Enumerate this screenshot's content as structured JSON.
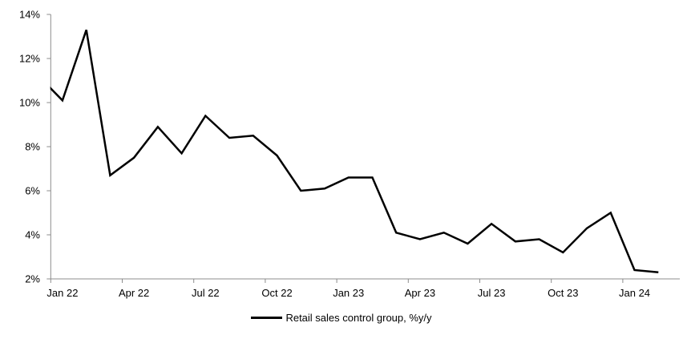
{
  "chart_data": {
    "type": "line",
    "title": "",
    "x": [
      "Dec 21",
      "Jan 22",
      "Feb 22",
      "Mar 22",
      "Apr 22",
      "May 22",
      "Jun 22",
      "Jul 22",
      "Aug 22",
      "Sep 22",
      "Oct 22",
      "Nov 22",
      "Dec 22",
      "Jan 23",
      "Feb 23",
      "Mar 23",
      "Apr 23",
      "May 23",
      "Jun 23",
      "Jul 23",
      "Aug 23",
      "Sep 23",
      "Oct 23",
      "Nov 23",
      "Dec 23",
      "Jan 24",
      "Feb 24"
    ],
    "series": [
      {
        "name": "Retail sales control group, %y/y",
        "color": "#000000",
        "values": [
          11.2,
          10.1,
          13.3,
          6.7,
          7.5,
          8.9,
          7.7,
          9.4,
          8.4,
          8.5,
          7.6,
          6.0,
          6.1,
          6.6,
          6.6,
          4.1,
          3.8,
          4.1,
          3.6,
          4.5,
          3.7,
          3.8,
          3.2,
          4.3,
          5.0,
          2.4,
          2.3
        ]
      }
    ],
    "y_axis": {
      "unit": "%",
      "min": 2,
      "max": 14,
      "tick_labels": [
        "2%",
        "4%",
        "6%",
        "8%",
        "10%",
        "12%",
        "14%"
      ]
    },
    "x_axis": {
      "tick_labels": [
        "Jan 22",
        "Apr 22",
        "Jul 22",
        "Oct 22",
        "Jan 23",
        "Apr 23",
        "Jul 23",
        "Oct 23",
        "Jan 24"
      ]
    },
    "legend": {
      "label": "Retail sales control group, %y/y",
      "position": "bottom"
    },
    "grid": false,
    "ylim": [
      2,
      14
    ]
  },
  "colors": {
    "line": "#000000",
    "axis": "#8c8c8c",
    "text": "#000000",
    "background": "#ffffff"
  }
}
